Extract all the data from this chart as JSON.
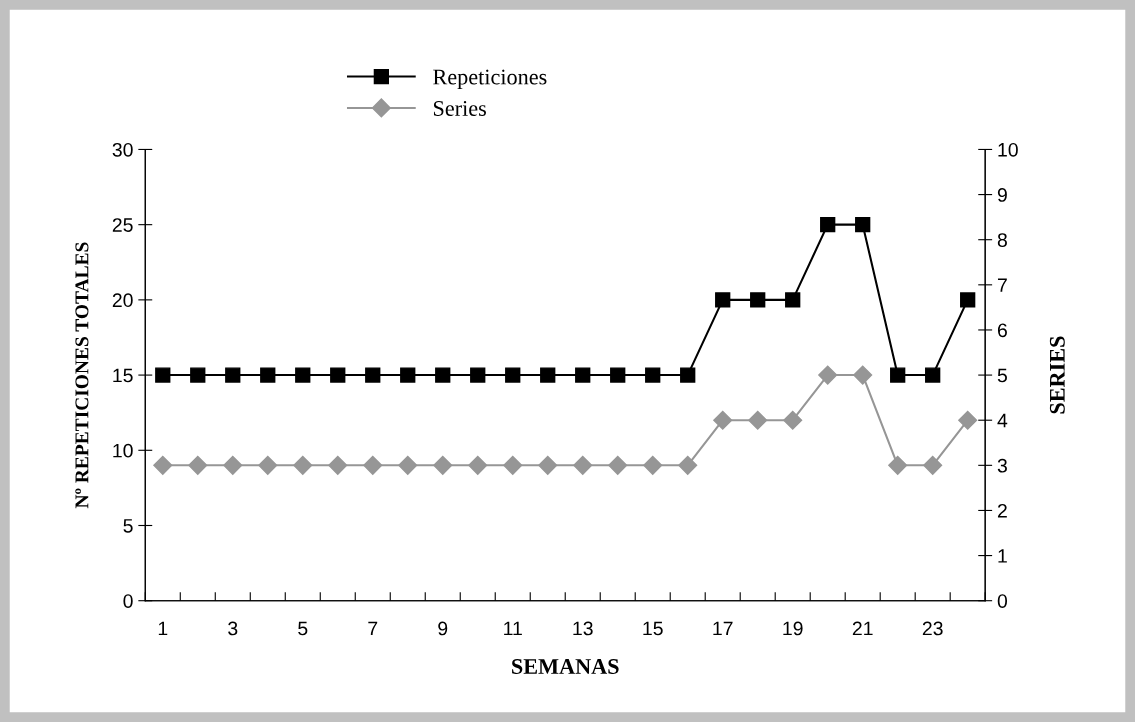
{
  "chart_data": {
    "type": "line",
    "xlabel": "SEMANAS",
    "ylabel": "Nº REPETICIONES TOTALES",
    "y2label": "SERIES",
    "categories": [
      "1",
      null,
      "3",
      null,
      "5",
      null,
      "7",
      null,
      "9",
      null,
      "11",
      null,
      "13",
      null,
      "15",
      null,
      "17",
      null,
      "19",
      null,
      "21",
      null,
      "23",
      null
    ],
    "series": [
      {
        "name": "Repeticiones",
        "color": "#000000",
        "marker": "square",
        "values": [
          15,
          15,
          15,
          15,
          15,
          15,
          15,
          15,
          15,
          15,
          15,
          15,
          15,
          15,
          15,
          15,
          20,
          20,
          20,
          25,
          25,
          15,
          15,
          20
        ]
      },
      {
        "name": "Series",
        "color": "#969696",
        "marker": "diamond",
        "axis": "y2",
        "values": [
          3,
          3,
          3,
          3,
          3,
          3,
          3,
          3,
          3,
          3,
          3,
          3,
          3,
          3,
          3,
          3,
          4,
          4,
          4,
          5,
          5,
          3,
          3,
          4
        ]
      }
    ],
    "ylim": [
      0,
      30
    ],
    "yticks": [
      0,
      5,
      10,
      15,
      20,
      25,
      30
    ],
    "y2lim": [
      0,
      10
    ],
    "y2ticks": [
      0,
      1,
      2,
      3,
      4,
      5,
      6,
      7,
      8,
      9,
      10
    ],
    "grid": false,
    "legend": "top"
  }
}
